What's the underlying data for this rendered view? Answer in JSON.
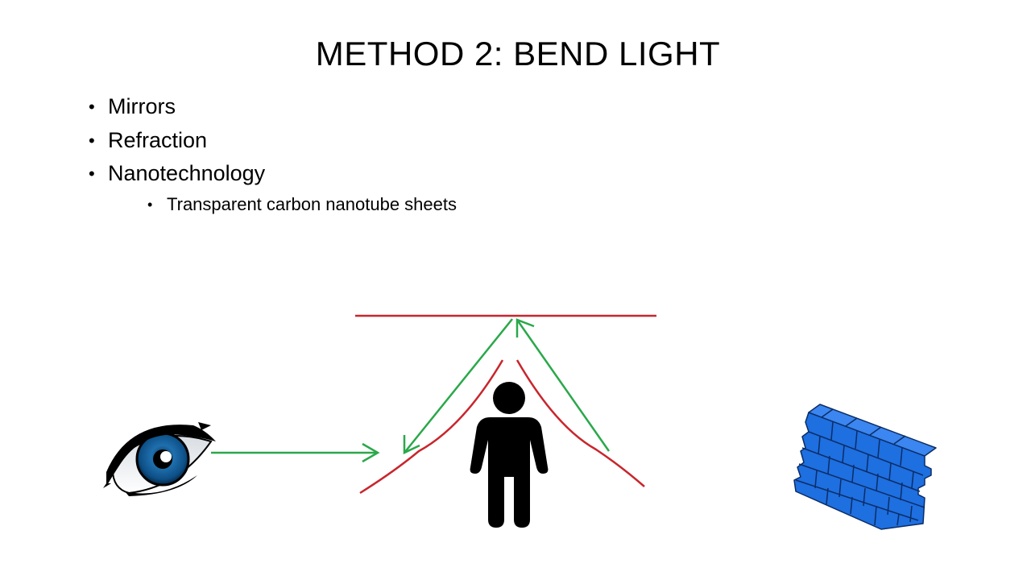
{
  "slide": {
    "title": "METHOD 2: BEND LIGHT",
    "bullets": [
      "Mirrors",
      "Refraction",
      "Nanotechnology"
    ],
    "sub_bullets": [
      "Transparent carbon nanotube sheets"
    ]
  },
  "colors": {
    "mirror_red": "#c8262c",
    "light_green": "#2aa84a",
    "eye_blue": "#1f6fae",
    "brick_blue": "#1e6fe0",
    "figure_black": "#000000"
  },
  "icons": [
    "eye-icon",
    "person-icon",
    "brick-wall-icon"
  ]
}
